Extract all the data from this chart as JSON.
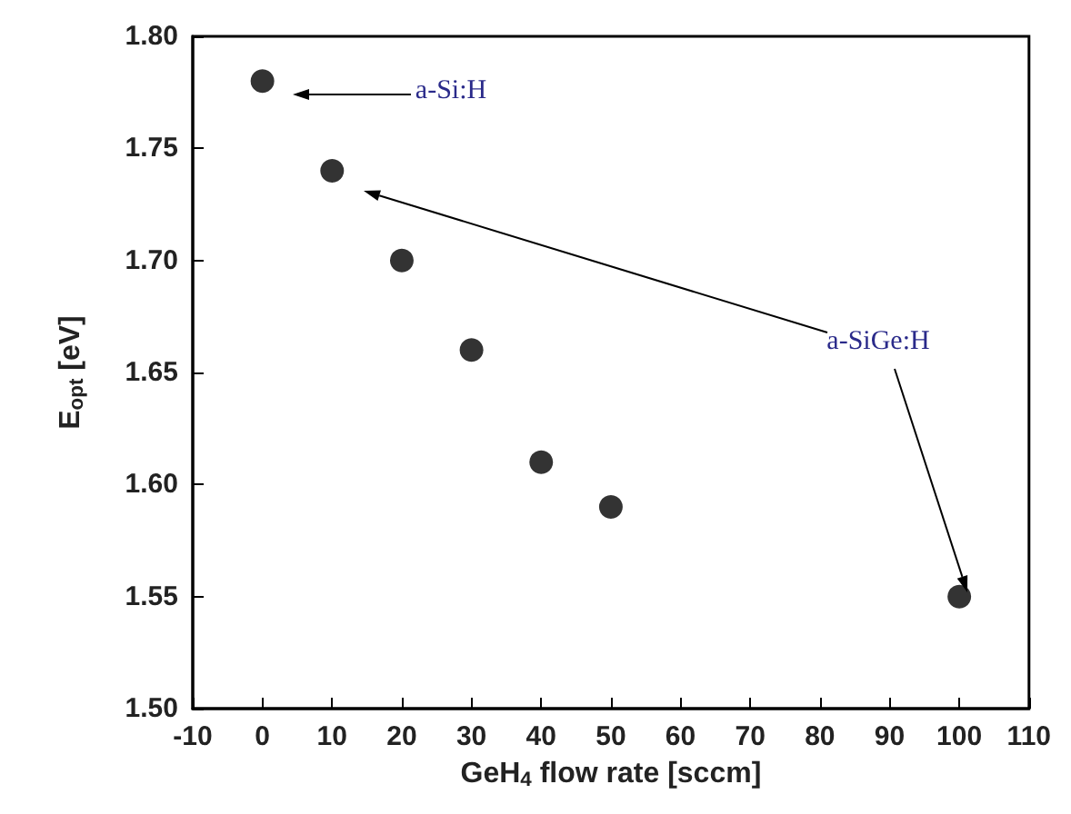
{
  "chart_data": {
    "type": "scatter",
    "xlabel": "GeH$_{4}$ flow rate [sccm]",
    "ylabel": "E$_{opt}$ [eV]",
    "x": [
      0,
      10,
      20,
      30,
      40,
      50,
      100
    ],
    "values": [
      1.78,
      1.74,
      1.7,
      1.66,
      1.61,
      1.59,
      1.55
    ],
    "color": "#000000",
    "marker": "circle",
    "grid": false,
    "xlim": [
      -10,
      110
    ],
    "xticks": [
      -10,
      0,
      10,
      20,
      30,
      40,
      50,
      60,
      70,
      80,
      90,
      100,
      110
    ],
    "ylim": [
      1.5,
      1.8
    ],
    "yticks": [
      {
        "value": 1.5,
        "label": "1.50"
      },
      {
        "value": 1.55,
        "label": "1.55"
      },
      {
        "value": 1.6,
        "label": "1.60"
      },
      {
        "value": 1.65,
        "label": "1.65"
      },
      {
        "value": 1.7,
        "label": "1.70"
      },
      {
        "value": 1.75,
        "label": "1.75"
      },
      {
        "value": 1.8,
        "label": "1.80"
      }
    ],
    "annotations": [
      "a-Si:H",
      "a-SiGe:H"
    ]
  }
}
